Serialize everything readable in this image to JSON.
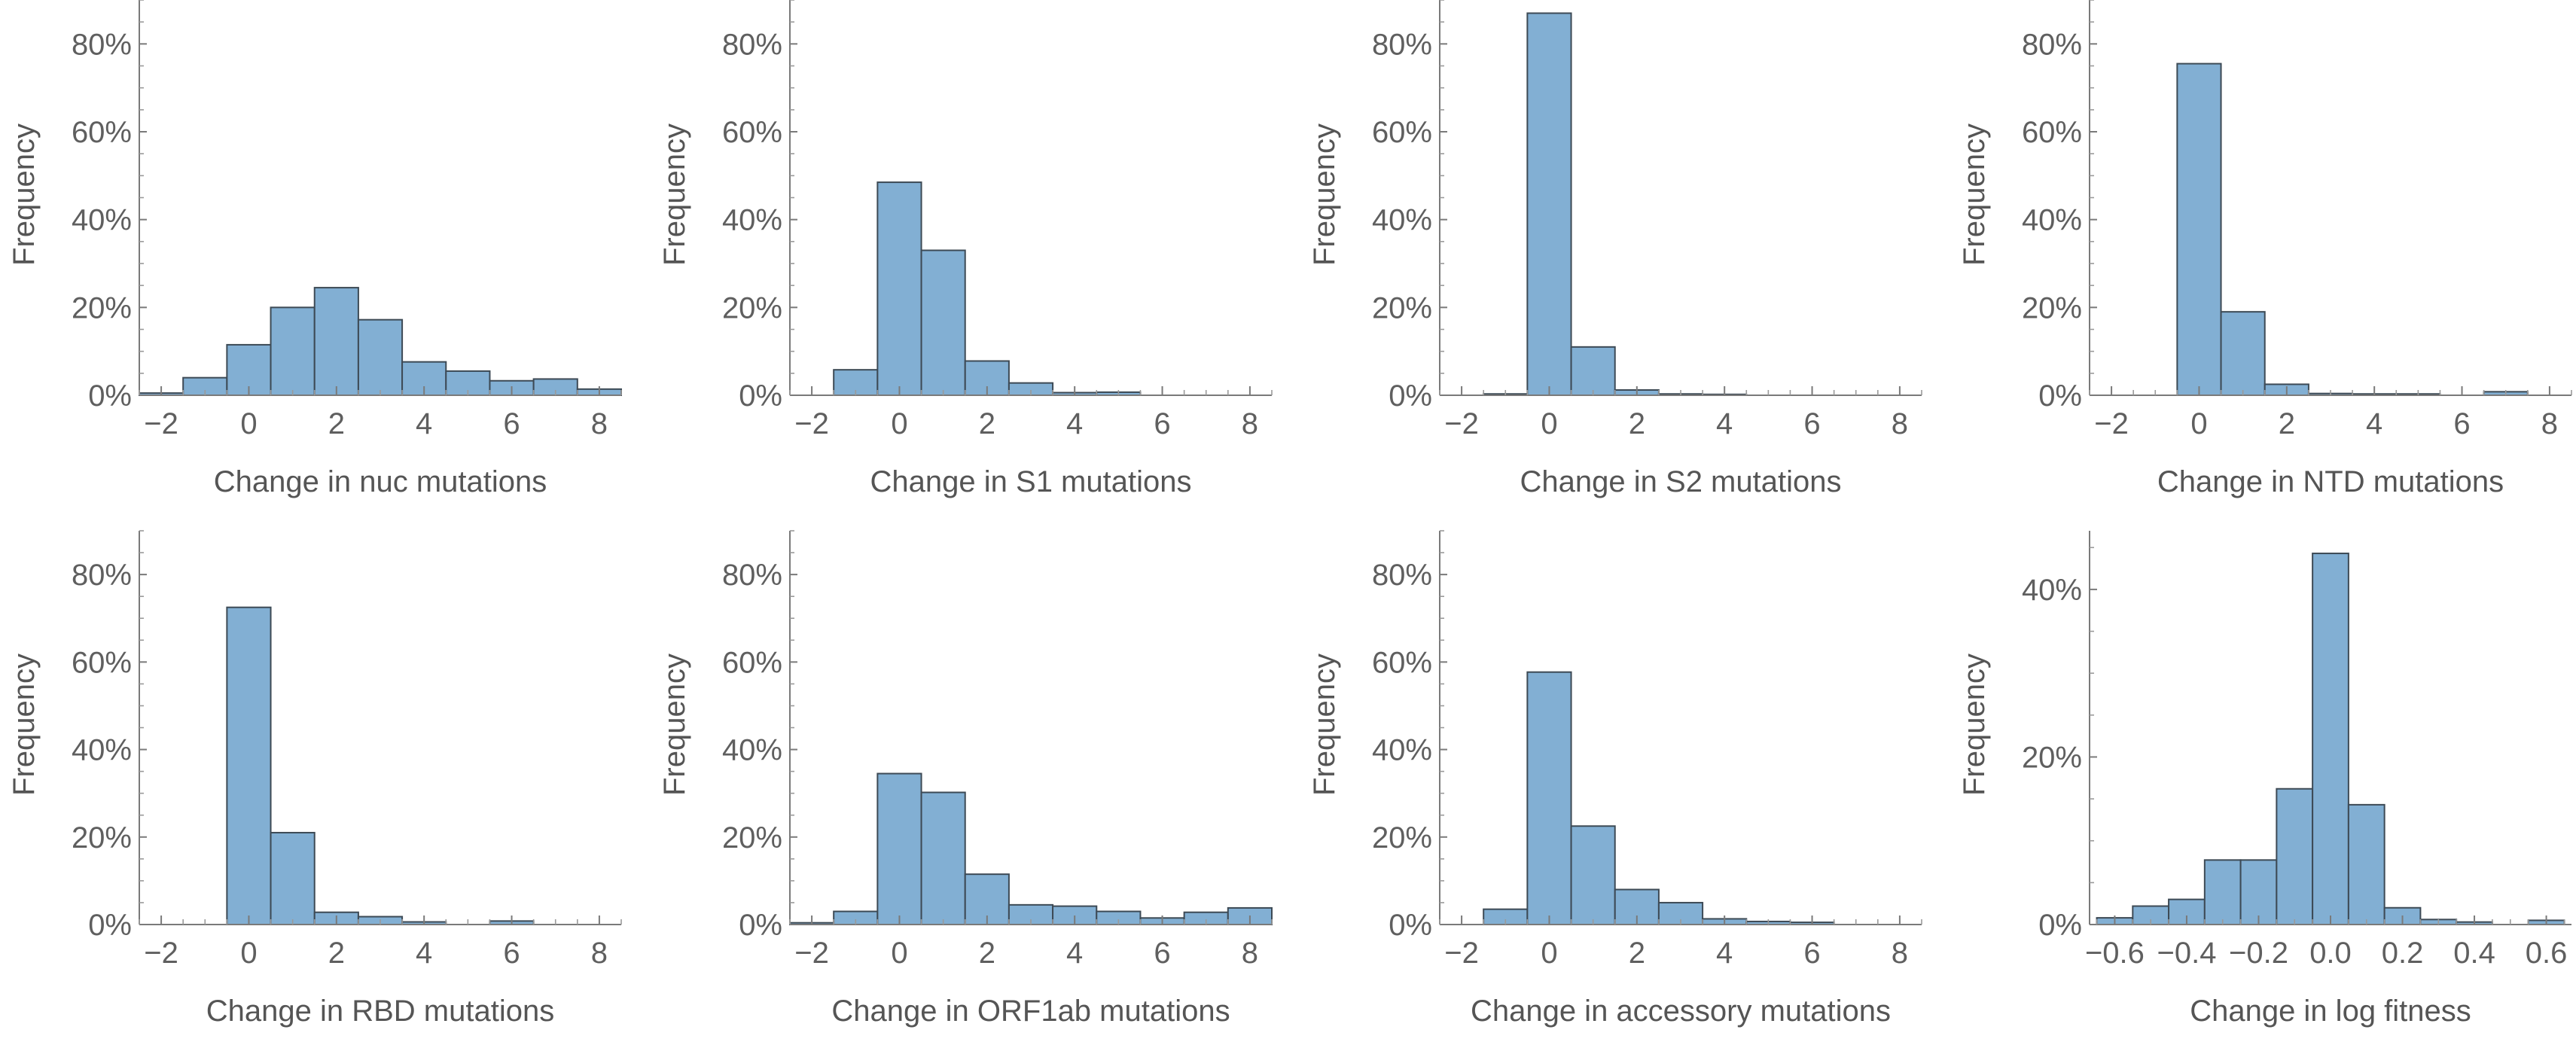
{
  "chart_data": [
    {
      "type": "bar",
      "xlabel": "Change in nuc mutations",
      "ylabel": "Frequency",
      "bin_width": 1,
      "bin_centers": [
        -2,
        -1,
        0,
        1,
        2,
        3,
        4,
        5,
        6,
        7,
        8
      ],
      "values": [
        0.005,
        0.04,
        0.115,
        0.2,
        0.245,
        0.172,
        0.076,
        0.055,
        0.033,
        0.037,
        0.014
      ],
      "xlim": [
        -2.5,
        8.5
      ],
      "ylim": [
        0,
        0.9
      ],
      "xticks": [
        -2,
        0,
        2,
        4,
        6,
        8
      ],
      "xtick_labels": [
        "−2",
        "0",
        "2",
        "4",
        "6",
        "8"
      ],
      "yticks": [
        0,
        0.2,
        0.4,
        0.6,
        0.8
      ],
      "ytick_labels": [
        "0%",
        "20%",
        "40%",
        "60%",
        "80%"
      ],
      "grid": false
    },
    {
      "type": "bar",
      "xlabel": "Change in S1 mutations",
      "ylabel": "Frequency",
      "bin_width": 1,
      "bin_centers": [
        -1,
        0,
        1,
        2,
        3,
        4,
        5
      ],
      "values": [
        0.058,
        0.485,
        0.33,
        0.078,
        0.028,
        0.006,
        0.007
      ],
      "xlim": [
        -2.5,
        8.5
      ],
      "ylim": [
        0,
        0.9
      ],
      "xticks": [
        -2,
        0,
        2,
        4,
        6,
        8
      ],
      "xtick_labels": [
        "−2",
        "0",
        "2",
        "4",
        "6",
        "8"
      ],
      "yticks": [
        0,
        0.2,
        0.4,
        0.6,
        0.8
      ],
      "ytick_labels": [
        "0%",
        "20%",
        "40%",
        "60%",
        "80%"
      ],
      "grid": false
    },
    {
      "type": "bar",
      "xlabel": "Change in S2 mutations",
      "ylabel": "Frequency",
      "bin_width": 1,
      "bin_centers": [
        -1,
        0,
        1,
        2,
        3,
        4
      ],
      "values": [
        0.003,
        0.87,
        0.11,
        0.012,
        0.003,
        0.002
      ],
      "xlim": [
        -2.5,
        8.5
      ],
      "ylim": [
        0,
        0.9
      ],
      "xticks": [
        -2,
        0,
        2,
        4,
        6,
        8
      ],
      "xtick_labels": [
        "−2",
        "0",
        "2",
        "4",
        "6",
        "8"
      ],
      "yticks": [
        0,
        0.2,
        0.4,
        0.6,
        0.8
      ],
      "ytick_labels": [
        "0%",
        "20%",
        "40%",
        "60%",
        "80%"
      ],
      "grid": false
    },
    {
      "type": "bar",
      "xlabel": "Change in NTD mutations",
      "ylabel": "Frequency",
      "bin_width": 1,
      "bin_centers": [
        0,
        1,
        2,
        3,
        4,
        5,
        7
      ],
      "values": [
        0.755,
        0.19,
        0.025,
        0.004,
        0.003,
        0.003,
        0.008
      ],
      "xlim": [
        -2.5,
        8.5
      ],
      "ylim": [
        0,
        0.9
      ],
      "xticks": [
        -2,
        0,
        2,
        4,
        6,
        8
      ],
      "xtick_labels": [
        "−2",
        "0",
        "2",
        "4",
        "6",
        "8"
      ],
      "yticks": [
        0,
        0.2,
        0.4,
        0.6,
        0.8
      ],
      "ytick_labels": [
        "0%",
        "20%",
        "40%",
        "60%",
        "80%"
      ],
      "grid": false
    },
    {
      "type": "bar",
      "xlabel": "Change in RBD mutations",
      "ylabel": "Frequency",
      "bin_width": 1,
      "bin_centers": [
        0,
        1,
        2,
        3,
        4,
        6
      ],
      "values": [
        0.725,
        0.21,
        0.028,
        0.018,
        0.006,
        0.008
      ],
      "xlim": [
        -2.5,
        8.5
      ],
      "ylim": [
        0,
        0.9
      ],
      "xticks": [
        -2,
        0,
        2,
        4,
        6,
        8
      ],
      "xtick_labels": [
        "−2",
        "0",
        "2",
        "4",
        "6",
        "8"
      ],
      "yticks": [
        0,
        0.2,
        0.4,
        0.6,
        0.8
      ],
      "ytick_labels": [
        "0%",
        "20%",
        "40%",
        "60%",
        "80%"
      ],
      "grid": false
    },
    {
      "type": "bar",
      "xlabel": "Change in ORF1ab mutations",
      "ylabel": "Frequency",
      "bin_width": 1,
      "bin_centers": [
        -2,
        -1,
        0,
        1,
        2,
        3,
        4,
        5,
        6,
        7,
        8
      ],
      "values": [
        0.004,
        0.03,
        0.345,
        0.302,
        0.115,
        0.045,
        0.042,
        0.03,
        0.015,
        0.028,
        0.038
      ],
      "xlim": [
        -2.5,
        8.5
      ],
      "ylim": [
        0,
        0.9
      ],
      "xticks": [
        -2,
        0,
        2,
        4,
        6,
        8
      ],
      "xtick_labels": [
        "−2",
        "0",
        "2",
        "4",
        "6",
        "8"
      ],
      "yticks": [
        0,
        0.2,
        0.4,
        0.6,
        0.8
      ],
      "ytick_labels": [
        "0%",
        "20%",
        "40%",
        "60%",
        "80%"
      ],
      "grid": false
    },
    {
      "type": "bar",
      "xlabel": "Change in accessory mutations",
      "ylabel": "Frequency",
      "bin_width": 1,
      "bin_centers": [
        -1,
        0,
        1,
        2,
        3,
        4,
        5,
        6
      ],
      "values": [
        0.035,
        0.577,
        0.225,
        0.08,
        0.05,
        0.013,
        0.007,
        0.005
      ],
      "xlim": [
        -2.5,
        8.5
      ],
      "ylim": [
        0,
        0.9
      ],
      "xticks": [
        -2,
        0,
        2,
        4,
        6,
        8
      ],
      "xtick_labels": [
        "−2",
        "0",
        "2",
        "4",
        "6",
        "8"
      ],
      "yticks": [
        0,
        0.2,
        0.4,
        0.6,
        0.8
      ],
      "ytick_labels": [
        "0%",
        "20%",
        "40%",
        "60%",
        "80%"
      ],
      "grid": false
    },
    {
      "type": "bar",
      "xlabel": "Change in log fitness",
      "ylabel": "Frequency",
      "bin_width": 0.1,
      "bin_centers": [
        -0.6,
        -0.5,
        -0.4,
        -0.3,
        -0.2,
        -0.1,
        0.0,
        0.1,
        0.2,
        0.3,
        0.4,
        0.6
      ],
      "values": [
        0.008,
        0.022,
        0.03,
        0.077,
        0.077,
        0.162,
        0.443,
        0.143,
        0.02,
        0.006,
        0.003,
        0.005
      ],
      "xlim": [
        -0.67,
        0.67
      ],
      "ylim": [
        0,
        0.47
      ],
      "xticks": [
        -0.6,
        -0.4,
        -0.2,
        0.0,
        0.2,
        0.4,
        0.6
      ],
      "xtick_labels": [
        "−0.6",
        "−0.4",
        "−0.2",
        "0.0",
        "0.2",
        "0.4",
        "0.6"
      ],
      "yticks": [
        0,
        0.2,
        0.4
      ],
      "ytick_labels": [
        "0%",
        "20%",
        "40%"
      ],
      "grid": false
    }
  ],
  "colors": {
    "bar_fill": "#82afd3",
    "bar_edge": "#3d4a55",
    "axis": "#7a7a7a",
    "text": "#5f5f5f"
  }
}
